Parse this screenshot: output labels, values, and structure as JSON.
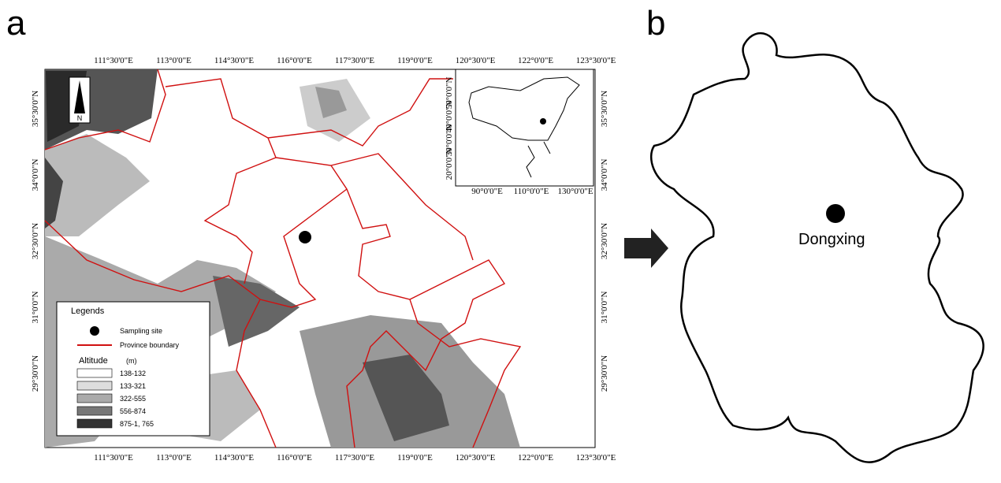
{
  "panels": {
    "a": "a",
    "b": "b"
  },
  "map": {
    "lon_labels": [
      "111°30'0\"E",
      "113°0'0\"E",
      "114°30'0\"E",
      "116°0'0\"E",
      "117°30'0\"E",
      "119°0'0\"E",
      "120°30'0\"E",
      "122°0'0\"E",
      "123°30'0\"E"
    ],
    "lat_labels": [
      "35°30'0\"N",
      "34°0'0\"N",
      "32°30'0\"N",
      "31°0'0\"N",
      "29°30'0\"N"
    ],
    "north": "N",
    "inset": {
      "lat_labels": [
        "50°0'0\"N",
        "40°0'0\"N",
        "30°0'0\"N",
        "20°0'0\"N"
      ],
      "lon_labels": [
        "90°0'0\"E",
        "110°0'0\"E",
        "130°0'0\"E"
      ]
    },
    "legend": {
      "title": "Legends",
      "site": "Sampling site",
      "boundary": "Province boundary",
      "altitude": "Altitude",
      "unit": "(m)",
      "classes": [
        "138-132",
        "133-321",
        "322-555",
        "556-874",
        "875-1, 765"
      ]
    }
  },
  "site_label": "Dongxing"
}
